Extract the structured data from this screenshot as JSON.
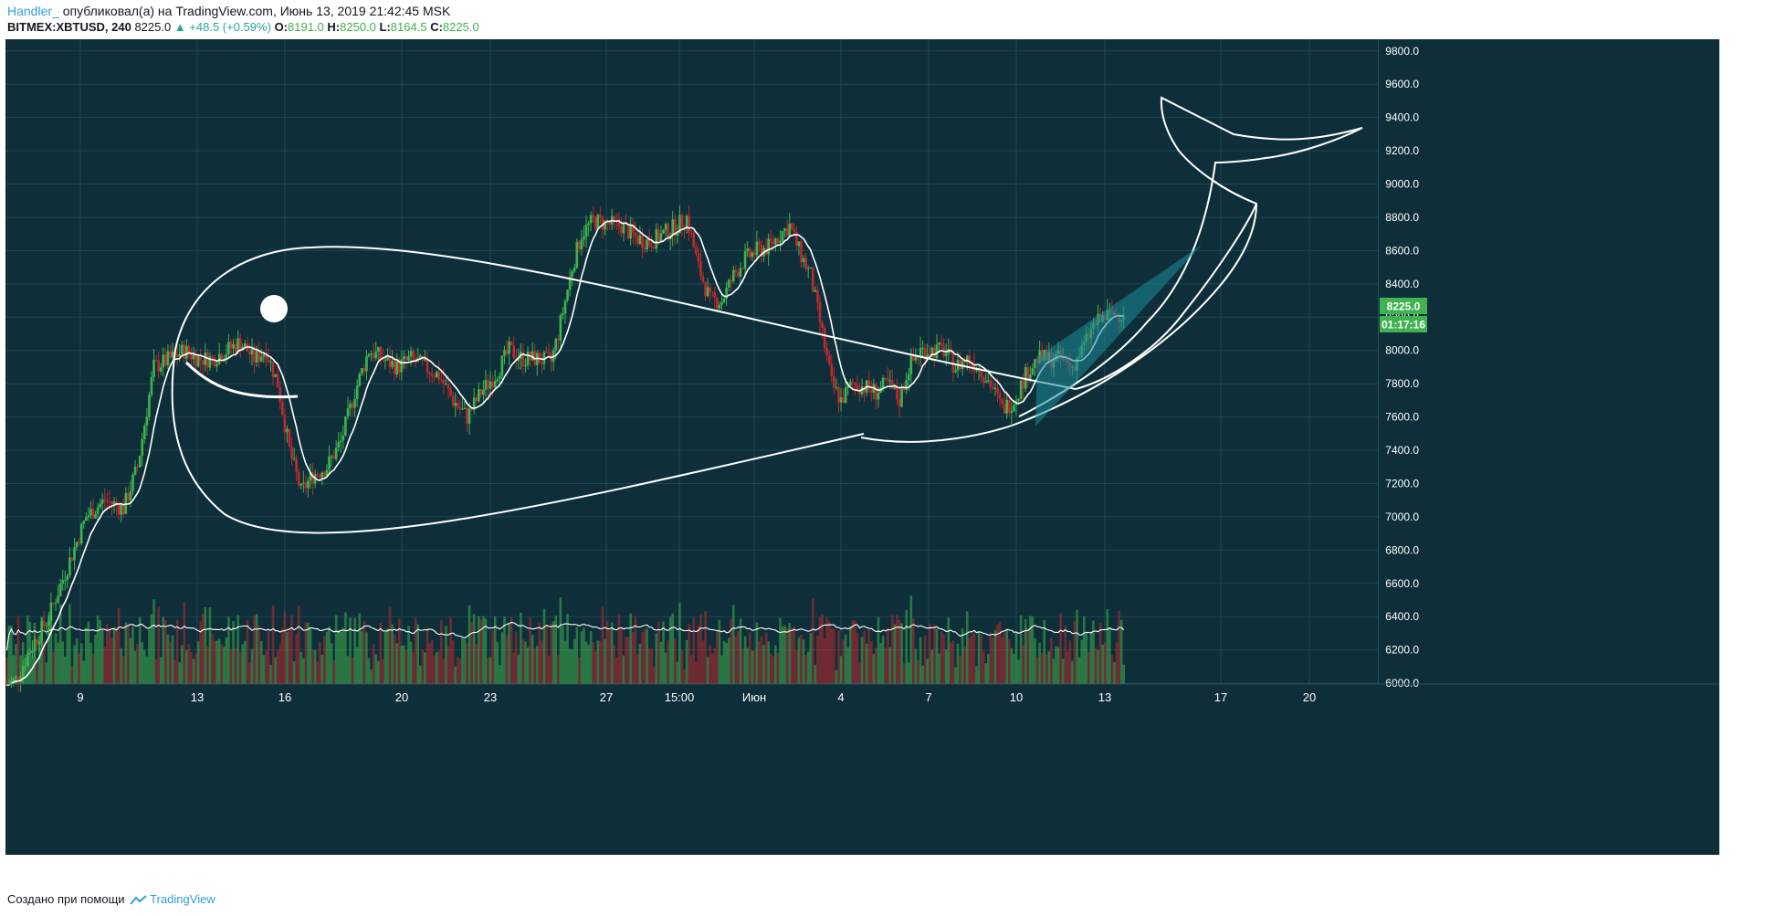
{
  "header": {
    "author": "Handler_",
    "published_text": " опубликовал(а) на TradingView.com, Июнь 13, 2019 21:42:45 MSK",
    "symbol": "BITMEX:XBTUSD, 240",
    "last": "8225.0",
    "change": "▲ +48.5 (+0.59%)",
    "o_label": "O:",
    "o_value": "8191.0",
    "h_label": "H:",
    "h_value": "8250.0",
    "l_label": "L:",
    "l_value": "8164.5",
    "c_label": "C:",
    "c_value": "8225.0"
  },
  "price_label": "8225.0",
  "countdown_label": "01:17:16",
  "footer": {
    "text": "Создано при помощи",
    "brand": "TradingView"
  },
  "colors": {
    "background": "#0e2f39",
    "grid": "#1f4750",
    "up": "#3fb34f",
    "down": "#c0282f",
    "price_tag": "#3fb34f",
    "drawing": "#ffffff",
    "wedge": "#1b8a9a"
  },
  "chart_data": {
    "type": "candlestick",
    "symbol": "BITMEX:XBTUSD",
    "timeframe": "240",
    "y_ticks": [
      6000,
      6200,
      6400,
      6600,
      6800,
      7000,
      7200,
      7400,
      7600,
      7800,
      8000,
      8200,
      8400,
      8600,
      8800,
      9000,
      9200,
      9400,
      9600,
      9800
    ],
    "ylim": [
      5995,
      9870
    ],
    "x_tick_labels": [
      "9",
      "13",
      "16",
      "20",
      "23",
      "27",
      "15:00",
      "Июн",
      "4",
      "7",
      "10",
      "13",
      "17",
      "20"
    ],
    "close_path": [
      [
        0,
        5990
      ],
      [
        4,
        6020
      ],
      [
        10,
        6200
      ],
      [
        18,
        6400
      ],
      [
        26,
        6700
      ],
      [
        34,
        7000
      ],
      [
        42,
        7100
      ],
      [
        50,
        7050
      ],
      [
        56,
        7300
      ],
      [
        63,
        7900
      ],
      [
        70,
        7950
      ],
      [
        76,
        8000
      ],
      [
        82,
        7950
      ],
      [
        88,
        7950
      ],
      [
        94,
        8000
      ],
      [
        100,
        8050
      ],
      [
        106,
        7950
      ],
      [
        111,
        8000
      ],
      [
        116,
        7800
      ],
      [
        121,
        7400
      ],
      [
        126,
        7150
      ],
      [
        131,
        7250
      ],
      [
        137,
        7300
      ],
      [
        143,
        7450
      ],
      [
        149,
        7750
      ],
      [
        155,
        8000
      ],
      [
        161,
        7950
      ],
      [
        167,
        7900
      ],
      [
        173,
        7950
      ],
      [
        179,
        7900
      ],
      [
        185,
        7850
      ],
      [
        191,
        7700
      ],
      [
        197,
        7600
      ],
      [
        203,
        7750
      ],
      [
        209,
        7850
      ],
      [
        215,
        8000
      ],
      [
        221,
        7950
      ],
      [
        227,
        7950
      ],
      [
        233,
        7930
      ],
      [
        236,
        8100
      ],
      [
        242,
        8500
      ],
      [
        246,
        8700
      ],
      [
        251,
        8780
      ],
      [
        257,
        8760
      ],
      [
        263,
        8750
      ],
      [
        269,
        8680
      ],
      [
        275,
        8650
      ],
      [
        281,
        8700
      ],
      [
        287,
        8750
      ],
      [
        291,
        8800
      ],
      [
        296,
        8500
      ],
      [
        301,
        8300
      ],
      [
        306,
        8300
      ],
      [
        311,
        8450
      ],
      [
        316,
        8550
      ],
      [
        321,
        8600
      ],
      [
        326,
        8620
      ],
      [
        331,
        8700
      ],
      [
        335,
        8750
      ],
      [
        339,
        8600
      ],
      [
        344,
        8450
      ],
      [
        349,
        8100
      ],
      [
        353,
        7800
      ],
      [
        357,
        7700
      ],
      [
        362,
        7800
      ],
      [
        367,
        7780
      ],
      [
        372,
        7750
      ],
      [
        377,
        7800
      ],
      [
        382,
        7700
      ],
      [
        386,
        7900
      ],
      [
        391,
        8000
      ],
      [
        396,
        8000
      ],
      [
        401,
        8000
      ],
      [
        406,
        7900
      ],
      [
        411,
        7950
      ],
      [
        416,
        7900
      ],
      [
        421,
        7800
      ],
      [
        426,
        7650
      ],
      [
        431,
        7700
      ],
      [
        436,
        7850
      ],
      [
        441,
        7950
      ],
      [
        446,
        7950
      ],
      [
        451,
        7950
      ],
      [
        456,
        7900
      ],
      [
        460,
        8000
      ],
      [
        465,
        8150
      ],
      [
        470,
        8200
      ],
      [
        474,
        8220
      ],
      [
        478,
        8225
      ]
    ],
    "volume_profile_note": "volume histogram at chart bottom with moving average line",
    "drawings": [
      "whale outline (curved lines)",
      "eye (filled circle)",
      "mouth arc",
      "shaded rising wedge"
    ]
  }
}
